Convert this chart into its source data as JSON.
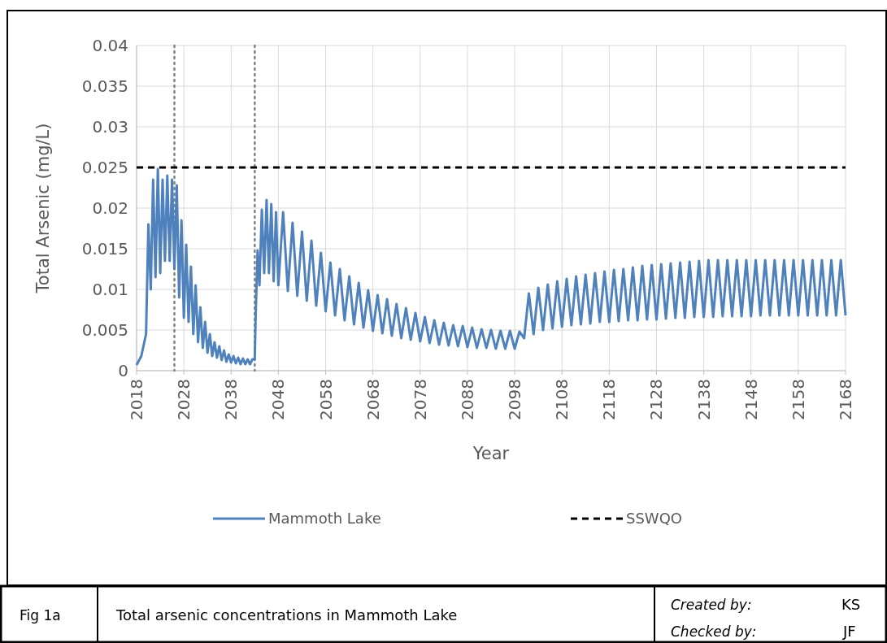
{
  "chart_data": {
    "type": "line",
    "xlabel": "Year",
    "ylabel": "Total Arsenic (mg/L)",
    "xlim": [
      2018,
      2168
    ],
    "xticks": [
      2018,
      2028,
      2038,
      2048,
      2058,
      2068,
      2078,
      2088,
      2098,
      2108,
      2118,
      2128,
      2138,
      2148,
      2158,
      2168
    ],
    "ylim": [
      0,
      0.04
    ],
    "yticks": [
      0,
      0.005,
      0.01,
      0.015,
      0.02,
      0.025,
      0.03,
      0.035,
      0.04
    ],
    "grid": true,
    "legend": "bottom",
    "line_style": "solid",
    "marker": "none",
    "series": [
      {
        "name": "Mammoth Lake",
        "color": "#4f81bd",
        "x": [
          2018,
          2019,
          2020,
          2020.5,
          2021,
          2021.5,
          2022,
          2022.5,
          2023,
          2023.5,
          2024,
          2024.5,
          2025,
          2025.5,
          2026,
          2026.5,
          2027,
          2027.5,
          2028,
          2028.5,
          2029,
          2029.5,
          2030,
          2030.5,
          2031,
          2031.5,
          2032,
          2032.5,
          2033,
          2033.5,
          2034,
          2034.5,
          2035,
          2035.5,
          2036,
          2036.5,
          2037,
          2037.5,
          2038,
          2038.5,
          2039,
          2039.5,
          2040,
          2040.5,
          2041,
          2041.5,
          2042,
          2042.5,
          2043,
          2043.2,
          2043.6,
          2044,
          2044.5,
          2045,
          2045.5,
          2046,
          2046.5,
          2047,
          2047.5,
          2048,
          2049,
          2050,
          2051,
          2052,
          2053,
          2054,
          2055,
          2056,
          2057,
          2058,
          2059,
          2060,
          2061,
          2062,
          2063,
          2064,
          2065,
          2066,
          2067,
          2068,
          2069,
          2070,
          2071,
          2072,
          2073,
          2074,
          2075,
          2076,
          2077,
          2078,
          2079,
          2080,
          2081,
          2082,
          2083,
          2084,
          2085,
          2086,
          2087,
          2088,
          2089,
          2090,
          2091,
          2092,
          2093,
          2094,
          2095,
          2096,
          2097,
          2098,
          2099,
          2100,
          2101,
          2102,
          2103,
          2104,
          2105,
          2106,
          2107,
          2108,
          2109,
          2110,
          2111,
          2112,
          2113,
          2114,
          2115,
          2116,
          2117,
          2118,
          2119,
          2120,
          2121,
          2122,
          2123,
          2124,
          2125,
          2126,
          2127,
          2128,
          2129,
          2130,
          2131,
          2132,
          2133,
          2134,
          2135,
          2136,
          2137,
          2138,
          2139,
          2140,
          2141,
          2142,
          2143,
          2144,
          2145,
          2146,
          2147,
          2148,
          2149,
          2150,
          2151,
          2152,
          2153,
          2154,
          2155,
          2156,
          2157,
          2158,
          2159,
          2160,
          2161,
          2162,
          2163,
          2164,
          2165,
          2166,
          2167,
          2168
        ],
        "values": [
          0.0007,
          0.0018,
          0.0045,
          0.018,
          0.01,
          0.0235,
          0.0115,
          0.0248,
          0.012,
          0.0235,
          0.0135,
          0.024,
          0.0135,
          0.0235,
          0.0125,
          0.0228,
          0.009,
          0.0185,
          0.0065,
          0.0155,
          0.006,
          0.0128,
          0.0045,
          0.0105,
          0.0035,
          0.0078,
          0.0028,
          0.006,
          0.0022,
          0.0045,
          0.0018,
          0.0035,
          0.0016,
          0.003,
          0.0013,
          0.0025,
          0.0011,
          0.002,
          0.001,
          0.0018,
          0.0009,
          0.0016,
          0.0008,
          0.0015,
          0.0008,
          0.0014,
          0.0008,
          0.0014,
          0.0014,
          0.007,
          0.0148,
          0.0105,
          0.0198,
          0.012,
          0.021,
          0.012,
          0.0205,
          0.011,
          0.0195,
          0.0105,
          0.0195,
          0.0098,
          0.0182,
          0.0092,
          0.0171,
          0.0086,
          0.016,
          0.008,
          0.0145,
          0.0073,
          0.0133,
          0.0068,
          0.0125,
          0.0062,
          0.0116,
          0.0057,
          0.0108,
          0.0053,
          0.0099,
          0.0049,
          0.0093,
          0.0046,
          0.0088,
          0.0043,
          0.0082,
          0.004,
          0.0077,
          0.0038,
          0.0071,
          0.0036,
          0.0066,
          0.0034,
          0.0062,
          0.0032,
          0.0059,
          0.0031,
          0.0056,
          0.003,
          0.0055,
          0.0029,
          0.0053,
          0.0028,
          0.0051,
          0.0028,
          0.005,
          0.0027,
          0.0049,
          0.0027,
          0.0049,
          0.0027,
          0.0048,
          0.004,
          0.0095,
          0.0045,
          0.0102,
          0.005,
          0.0106,
          0.0052,
          0.011,
          0.0054,
          0.0113,
          0.0056,
          0.0116,
          0.0057,
          0.0118,
          0.0058,
          0.012,
          0.006,
          0.0122,
          0.006,
          0.0124,
          0.0061,
          0.0125,
          0.0062,
          0.0127,
          0.0062,
          0.0129,
          0.0063,
          0.013,
          0.0063,
          0.0131,
          0.0064,
          0.0132,
          0.0065,
          0.0133,
          0.0065,
          0.0134,
          0.0066,
          0.0135,
          0.0066,
          0.0136,
          0.0066,
          0.0136,
          0.0067,
          0.0136,
          0.0067,
          0.0136,
          0.0067,
          0.0136,
          0.0067,
          0.0136,
          0.0068,
          0.0136,
          0.0068,
          0.0136,
          0.0068,
          0.0136,
          0.0068,
          0.0136,
          0.0068,
          0.0136,
          0.0068,
          0.0136,
          0.0068,
          0.0136,
          0.0068,
          0.0136,
          0.0068,
          0.0136,
          0.0068
        ]
      }
    ],
    "ref_lines": [
      {
        "axis": "y",
        "value": 0.025,
        "label": "SSWQO",
        "color": "#000000",
        "line_style": "dashed"
      },
      {
        "axis": "x",
        "value": 2026,
        "color": "#808080",
        "line_style": "dotted"
      },
      {
        "axis": "x",
        "value": 2043,
        "color": "#808080",
        "line_style": "dotted"
      }
    ],
    "annotations": [
      "Fig 1a",
      "Total arsenic concentrations in Mammoth Lake",
      "Created by:",
      "KS",
      "Checked by:",
      "JF"
    ]
  }
}
